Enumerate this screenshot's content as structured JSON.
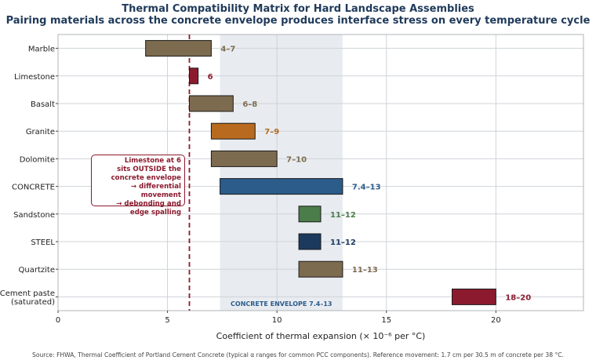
{
  "title": "Thermal Compatibility Matrix for Hard Landscape Assemblies",
  "subtitle": "Pairing materials across the concrete envelope produces interface stress on every temperature cycle",
  "source": "Source: FHWA, Thermal Coefficient of Portland Cement Concrete (typical α ranges for common PCC components). Reference movement: 1.7 cm per 30.5 m of concrete per 38 °C.",
  "annotation": "Limestone at 6\nsits OUTSIDE the\nconcrete envelope\n→ differential movement\n→ debonding and\nedge spalling",
  "envelope_label": "CONCRETE ENVELOPE 7.4–13",
  "colors": {
    "stone": "#7d6b4f",
    "limestone": "#8b1a2e",
    "granite": "#b86b1f",
    "concrete": "#2b5c8a",
    "sandstone": "#4a7d4a",
    "steel": "#1b3a5e",
    "cement_paste": "#8b1a2e",
    "envelope": "#e8ecf1",
    "reference_line": "#8b1a2e"
  },
  "chart_data": {
    "type": "bar",
    "orientation": "horizontal",
    "title": "Thermal Compatibility Matrix for Hard Landscape Assemblies",
    "subtitle": "Pairing materials across the concrete envelope produces interface stress on every temperature cycle",
    "xlabel": "Coefficient of thermal expansion (× 10⁻⁶ per °C)",
    "ylabel": "",
    "xlim": [
      0,
      24
    ],
    "xticks": [
      0,
      5,
      10,
      15,
      20
    ],
    "grid": true,
    "categories": [
      "Marble",
      "Limestone",
      "Basalt",
      "Granite",
      "Dolomite",
      "CONCRETE",
      "Sandstone",
      "STEEL",
      "Quartzite",
      "Cement paste\n(saturated)"
    ],
    "series": [
      {
        "ranges": [
          {
            "category": "Marble",
            "low": 4,
            "high": 7,
            "label": "4–7",
            "color": "#7d6b4f"
          },
          {
            "category": "Limestone",
            "low": 6,
            "high": 6.4,
            "label": "6",
            "color": "#8b1a2e"
          },
          {
            "category": "Basalt",
            "low": 6,
            "high": 8,
            "label": "6–8",
            "color": "#7d6b4f"
          },
          {
            "category": "Granite",
            "low": 7,
            "high": 9,
            "label": "7–9",
            "color": "#b86b1f"
          },
          {
            "category": "Dolomite",
            "low": 7,
            "high": 10,
            "label": "7–10",
            "color": "#7d6b4f"
          },
          {
            "category": "CONCRETE",
            "low": 7.4,
            "high": 13,
            "label": "7.4–13",
            "color": "#2b5c8a"
          },
          {
            "category": "Sandstone",
            "low": 11,
            "high": 12,
            "label": "11–12",
            "color": "#4a7d4a"
          },
          {
            "category": "STEEL",
            "low": 11,
            "high": 12,
            "label": "11–12",
            "color": "#1b3a5e"
          },
          {
            "category": "Quartzite",
            "low": 11,
            "high": 13,
            "label": "11–13",
            "color": "#7d6b4f"
          },
          {
            "category": "Cement paste\n(saturated)",
            "low": 18,
            "high": 20,
            "label": "18–20",
            "color": "#8b1a2e"
          }
        ]
      }
    ],
    "envelope": {
      "low": 7.4,
      "high": 13,
      "label": "CONCRETE ENVELOPE 7.4–13"
    },
    "reference_line": {
      "x": 6,
      "style": "dashed"
    }
  }
}
